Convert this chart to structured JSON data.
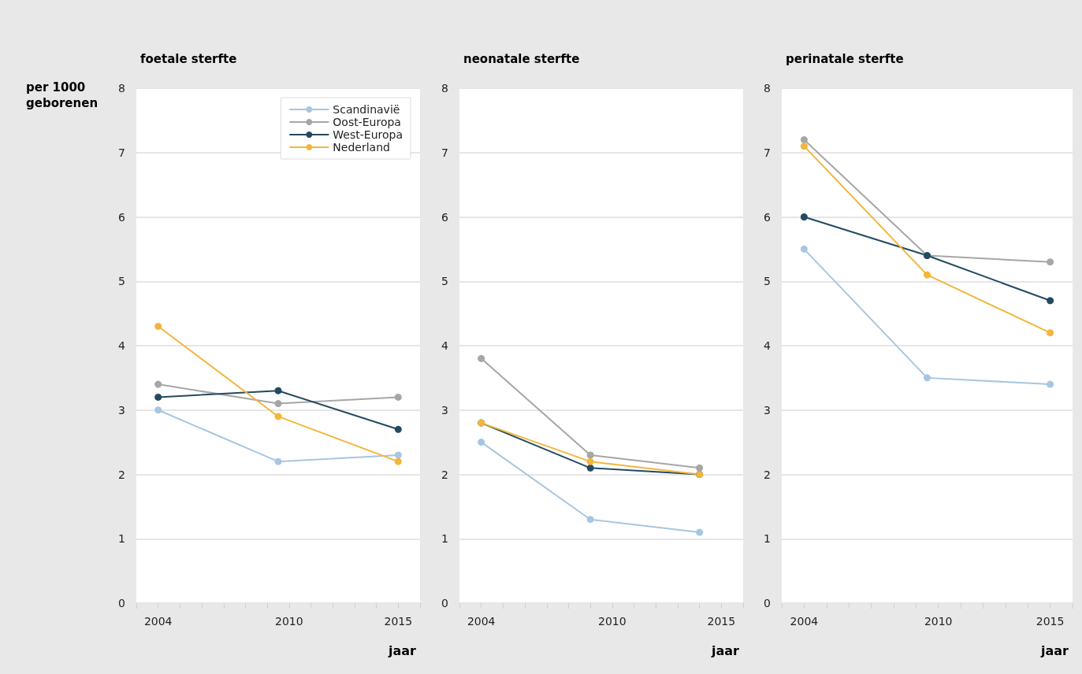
{
  "chart_data": [
    {
      "type": "line",
      "title": "foetale sterfte",
      "ylabel": "per 1000 geborenen",
      "xlabel": "jaar",
      "xlim": [
        2003,
        2016
      ],
      "xticks": [
        {
          "value": 2003,
          "label": null
        },
        {
          "value": 2004,
          "label": "2004"
        },
        {
          "value": 2005,
          "label": null
        },
        {
          "value": 2006,
          "label": null
        },
        {
          "value": 2007,
          "label": null
        },
        {
          "value": 2008,
          "label": null
        },
        {
          "value": 2009,
          "label": null
        },
        {
          "value": 2010,
          "label": "2010"
        },
        {
          "value": 2011,
          "label": null
        },
        {
          "value": 2012,
          "label": null
        },
        {
          "value": 2013,
          "label": null
        },
        {
          "value": 2014,
          "label": null
        },
        {
          "value": 2015,
          "label": "2015"
        },
        {
          "value": 2016,
          "label": null
        }
      ],
      "ylim": [
        0,
        8
      ],
      "yticks": [
        0,
        1,
        2,
        3,
        4,
        5,
        6,
        7,
        8
      ],
      "grid": "y",
      "legend": "top right",
      "marker": "circle",
      "line_style": "solid",
      "x": [
        2004,
        2009.5,
        2015
      ],
      "series": [
        {
          "name": "Scandinavië",
          "color": "#a7c6e1",
          "values": [
            3.0,
            2.2,
            2.3
          ]
        },
        {
          "name": "Oost-Europa",
          "color": "#a6a6a6",
          "values": [
            3.4,
            3.1,
            3.2
          ]
        },
        {
          "name": "West-Europa",
          "color": "#234a61",
          "values": [
            3.2,
            3.3,
            2.7
          ]
        },
        {
          "name": "Nederland",
          "color": "#f2b63d",
          "values": [
            4.3,
            2.9,
            2.2
          ]
        }
      ]
    },
    {
      "type": "line",
      "title": "neonatale sterfte",
      "xlabel": "jaar",
      "xlim": [
        2003,
        2016
      ],
      "xticks": [
        {
          "value": 2003,
          "label": null
        },
        {
          "value": 2004,
          "label": "2004"
        },
        {
          "value": 2005,
          "label": null
        },
        {
          "value": 2006,
          "label": null
        },
        {
          "value": 2007,
          "label": null
        },
        {
          "value": 2008,
          "label": null
        },
        {
          "value": 2009,
          "label": null
        },
        {
          "value": 2010,
          "label": "2010"
        },
        {
          "value": 2011,
          "label": null
        },
        {
          "value": 2012,
          "label": null
        },
        {
          "value": 2013,
          "label": null
        },
        {
          "value": 2014,
          "label": null
        },
        {
          "value": 2015,
          "label": "2015"
        },
        {
          "value": 2016,
          "label": null
        }
      ],
      "ylim": [
        0,
        8
      ],
      "yticks": [
        0,
        1,
        2,
        3,
        4,
        5,
        6,
        7,
        8
      ],
      "grid": "y",
      "marker": "circle",
      "line_style": "solid",
      "x": [
        2004,
        2009,
        2014
      ],
      "series": [
        {
          "color": "#a7c6e1",
          "values": [
            2.5,
            1.3,
            1.1
          ]
        },
        {
          "color": "#a6a6a6",
          "values": [
            3.8,
            2.3,
            2.1
          ]
        },
        {
          "color": "#234a61",
          "values": [
            2.8,
            2.1,
            2.0
          ]
        },
        {
          "color": "#f2b63d",
          "values": [
            2.8,
            2.2,
            2.0
          ]
        }
      ]
    },
    {
      "type": "line",
      "title": "perinatale sterfte",
      "xlabel": "jaar",
      "xlim": [
        2003,
        2016
      ],
      "xticks": [
        {
          "value": 2003,
          "label": null
        },
        {
          "value": 2004,
          "label": "2004"
        },
        {
          "value": 2005,
          "label": null
        },
        {
          "value": 2006,
          "label": null
        },
        {
          "value": 2007,
          "label": null
        },
        {
          "value": 2008,
          "label": null
        },
        {
          "value": 2009,
          "label": null
        },
        {
          "value": 2010,
          "label": "2010"
        },
        {
          "value": 2011,
          "label": null
        },
        {
          "value": 2012,
          "label": null
        },
        {
          "value": 2013,
          "label": null
        },
        {
          "value": 2014,
          "label": null
        },
        {
          "value": 2015,
          "label": "2015"
        },
        {
          "value": 2016,
          "label": null
        }
      ],
      "ylim": [
        0,
        8
      ],
      "yticks": [
        0,
        1,
        2,
        3,
        4,
        5,
        6,
        7,
        8
      ],
      "grid": "y",
      "marker": "circle",
      "line_style": "solid",
      "x": [
        2004,
        2009.5,
        2015
      ],
      "series": [
        {
          "color": "#a7c6e1",
          "values": [
            5.5,
            3.5,
            3.4
          ]
        },
        {
          "color": "#a6a6a6",
          "values": [
            7.2,
            5.4,
            5.3
          ]
        },
        {
          "color": "#234a61",
          "values": [
            6.0,
            5.4,
            4.7
          ]
        },
        {
          "color": "#f2b63d",
          "values": [
            7.1,
            5.1,
            4.2
          ]
        }
      ]
    }
  ]
}
